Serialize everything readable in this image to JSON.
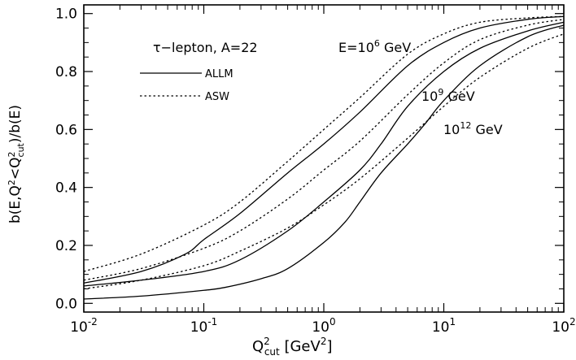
{
  "chart_data": {
    "type": "line",
    "title": "",
    "xscale": "log",
    "xlim": [
      0.01,
      100
    ],
    "ylim": [
      -0.03,
      1.03
    ],
    "xlabel": {
      "main": "Q",
      "sup": "2",
      "sub": "cut",
      "rest": " [GeV",
      "sup2": "2",
      "end": "]"
    },
    "ylabel": "b(E,Q²<Q²cut)/b(E)",
    "ylabel_parts": {
      "a": "b(E,Q",
      "sup1": "2",
      "b": "<Q",
      "sup2": "2",
      "sub": "cut",
      "c": ")/b(E)"
    },
    "x_ticks": [
      {
        "value": 0.01,
        "base": "10",
        "exp": "-2"
      },
      {
        "value": 0.1,
        "base": "10",
        "exp": "-1"
      },
      {
        "value": 1,
        "base": "10",
        "exp": "0"
      },
      {
        "value": 10,
        "base": "10",
        "exp": "1"
      },
      {
        "value": 100,
        "base": "10",
        "exp": "2"
      }
    ],
    "y_ticks": [
      "0.0",
      "0.2",
      "0.4",
      "0.6",
      "0.8",
      "1.0"
    ],
    "y_tick_values": [
      0.0,
      0.2,
      0.4,
      0.6,
      0.8,
      1.0
    ],
    "title_annotation": "τ−lepton, A=22",
    "energy_labels": [
      {
        "pre": "E=10",
        "exp": "6",
        "post": " GeV"
      },
      {
        "pre": "10",
        "exp": "9",
        "post": " GeV"
      },
      {
        "pre": "10",
        "exp": "12",
        "post": " GeV"
      }
    ],
    "legend": [
      {
        "label": "ALLM",
        "style": "solid"
      },
      {
        "label": "ASW",
        "style": "dotted"
      }
    ],
    "series": [
      {
        "name": "ALLM E=10^6 GeV",
        "style": "solid",
        "x": [
          0.01,
          0.03,
          0.07,
          0.1,
          0.2,
          0.5,
          1,
          2,
          5,
          10,
          20,
          50,
          100
        ],
        "y": [
          0.07,
          0.11,
          0.17,
          0.22,
          0.31,
          0.45,
          0.55,
          0.66,
          0.82,
          0.9,
          0.95,
          0.98,
          0.99
        ]
      },
      {
        "name": "ASW E=10^6 GeV",
        "style": "dotted",
        "x": [
          0.01,
          0.03,
          0.1,
          0.2,
          0.5,
          1,
          2,
          5,
          10,
          20,
          50,
          100
        ],
        "y": [
          0.11,
          0.17,
          0.27,
          0.35,
          0.49,
          0.6,
          0.71,
          0.86,
          0.93,
          0.97,
          0.985,
          0.99
        ]
      },
      {
        "name": "ALLM E=10^9 GeV",
        "style": "solid",
        "x": [
          0.01,
          0.03,
          0.1,
          0.2,
          0.5,
          1,
          2,
          3,
          5,
          10,
          20,
          50,
          100
        ],
        "y": [
          0.06,
          0.08,
          0.11,
          0.15,
          0.25,
          0.35,
          0.46,
          0.55,
          0.68,
          0.8,
          0.88,
          0.94,
          0.97
        ]
      },
      {
        "name": "ASW E=10^9 GeV",
        "style": "dotted",
        "x": [
          0.01,
          0.03,
          0.1,
          0.2,
          0.5,
          1,
          2,
          5,
          10,
          20,
          50,
          100
        ],
        "y": [
          0.08,
          0.12,
          0.19,
          0.25,
          0.36,
          0.46,
          0.56,
          0.72,
          0.83,
          0.91,
          0.96,
          0.98
        ]
      },
      {
        "name": "ALLM E=10^12 GeV",
        "style": "solid",
        "x": [
          0.01,
          0.03,
          0.1,
          0.15,
          0.3,
          0.5,
          1,
          1.5,
          2,
          3,
          5,
          7,
          10,
          20,
          50,
          100
        ],
        "y": [
          0.015,
          0.025,
          0.045,
          0.055,
          0.085,
          0.12,
          0.21,
          0.28,
          0.35,
          0.45,
          0.55,
          0.62,
          0.7,
          0.82,
          0.92,
          0.96
        ]
      },
      {
        "name": "ASW E=10^12 GeV",
        "style": "dotted",
        "x": [
          0.01,
          0.03,
          0.1,
          0.2,
          0.5,
          1,
          2,
          5,
          10,
          20,
          50,
          100
        ],
        "y": [
          0.05,
          0.08,
          0.13,
          0.18,
          0.26,
          0.34,
          0.43,
          0.57,
          0.68,
          0.78,
          0.88,
          0.93
        ]
      }
    ]
  }
}
